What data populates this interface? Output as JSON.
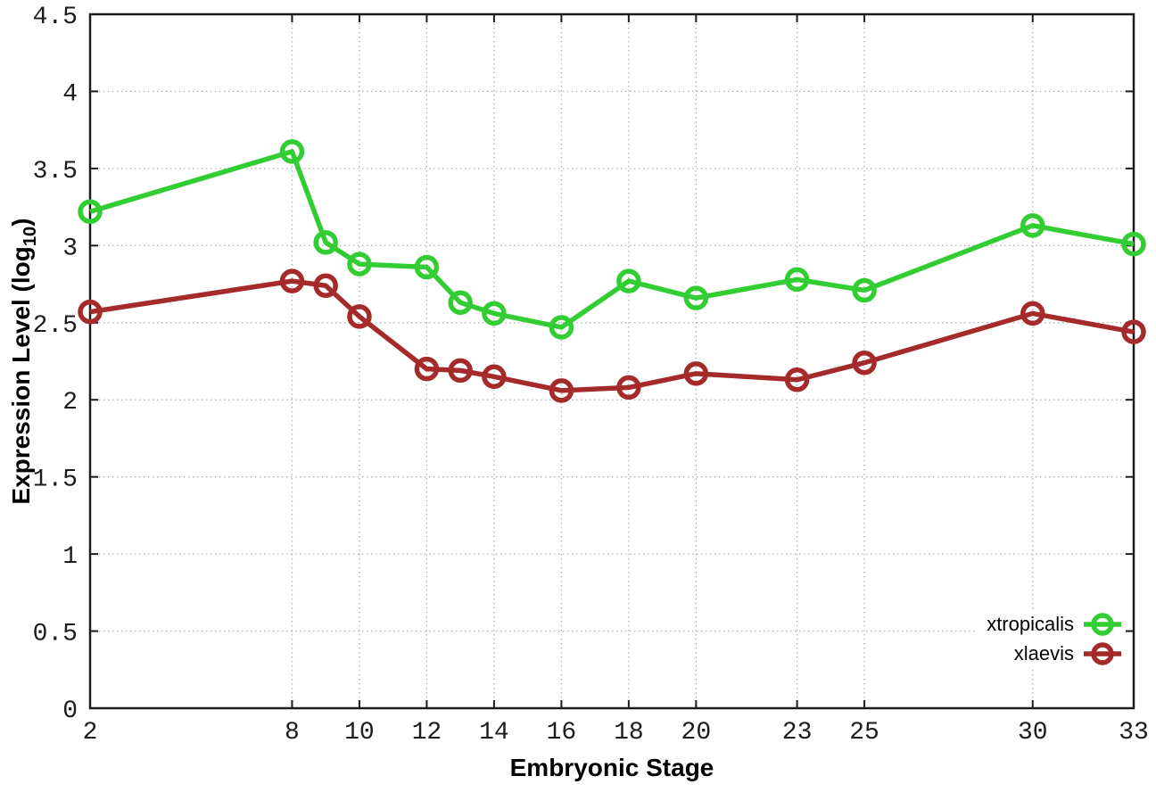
{
  "chart_data": {
    "type": "line",
    "title": "",
    "xlabel": "Embryonic Stage",
    "ylabel": "Expression Level (log10)",
    "ylabel_parts": {
      "pre": "Expression Level (log",
      "sub": "10",
      "post": ")"
    },
    "xlim": [
      2,
      33
    ],
    "ylim": [
      0,
      4.5
    ],
    "x": [
      2,
      8,
      9,
      10,
      12,
      13,
      14,
      16,
      18,
      20,
      23,
      25,
      30,
      33
    ],
    "series": [
      {
        "name": "xtropicalis",
        "color": "#32cd32",
        "values": [
          3.22,
          3.61,
          3.02,
          2.88,
          2.86,
          2.63,
          2.56,
          2.47,
          2.77,
          2.66,
          2.78,
          2.71,
          3.13,
          3.01
        ]
      },
      {
        "name": "xlaevis",
        "color": "#a52a2a",
        "values": [
          2.57,
          2.77,
          2.74,
          2.54,
          2.2,
          2.19,
          2.15,
          2.06,
          2.08,
          2.17,
          2.13,
          2.24,
          2.56,
          2.44
        ]
      }
    ],
    "x_ticks": [
      2,
      8,
      10,
      12,
      14,
      16,
      18,
      20,
      23,
      25,
      30,
      33
    ],
    "x_tick_labels": [
      "2",
      "8",
      "10",
      "12",
      "14",
      "16",
      "18",
      "20",
      "23",
      "25",
      "30",
      "33"
    ],
    "y_ticks": [
      0,
      0.5,
      1,
      1.5,
      2,
      2.5,
      3,
      3.5,
      4,
      4.5
    ],
    "y_tick_labels": [
      "0",
      "0.5",
      "1",
      "1.5",
      "2",
      "2.5",
      "3",
      "3.5",
      "4",
      "4.5"
    ],
    "grid": true,
    "grid_style": "dotted",
    "grid_color": "#b0b0b0",
    "axis_color": "#1c1c1c",
    "background_color": "#ffffff",
    "marker": "open-circle",
    "legend_position": "bottom-right"
  }
}
